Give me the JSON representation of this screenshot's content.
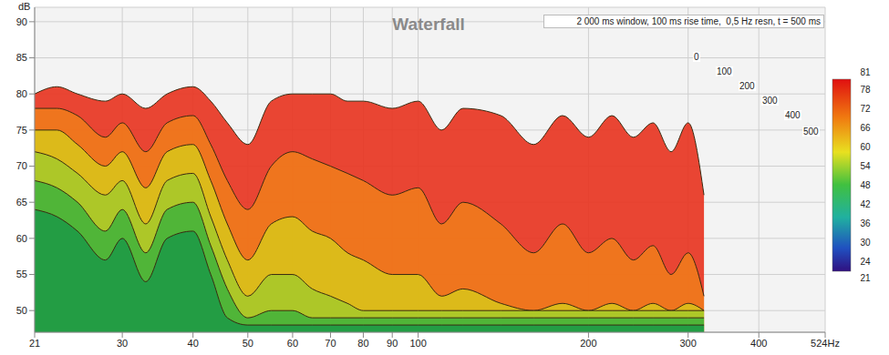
{
  "chart_data": {
    "type": "area",
    "title": "Waterfall",
    "subtitle": "2 000 ms window, 100 ms rise time,  0,5 Hz resn, t = 500 ms",
    "y_label": "dB",
    "log": "x",
    "grid": true,
    "xlim": [
      21,
      524
    ],
    "xticks": [
      21,
      30,
      40,
      50,
      60,
      70,
      80,
      90,
      100,
      200,
      300,
      400,
      {
        "value": 524,
        "label": "524Hz"
      }
    ],
    "ylim": [
      47,
      92
    ],
    "yticks": [
      50,
      55,
      60,
      65,
      70,
      75,
      80,
      85,
      90
    ],
    "x": [
      21,
      23,
      25,
      28,
      30,
      33,
      36,
      40,
      43,
      46,
      50,
      55,
      60,
      65,
      70,
      75,
      80,
      90,
      100,
      110,
      120,
      140,
      160,
      180,
      200,
      220,
      240,
      260,
      280,
      300,
      320
    ],
    "series": [
      {
        "name": "0",
        "color": "#e8321e",
        "values": [
          80,
          81,
          80,
          79,
          80,
          78,
          80,
          81,
          79,
          76,
          73,
          79,
          80,
          80,
          80,
          79,
          79,
          78,
          79,
          75,
          78,
          77,
          73,
          77,
          74,
          77,
          74,
          76,
          72,
          76,
          66
        ]
      },
      {
        "name": "100",
        "color": "#f07a1c",
        "values": [
          78,
          78,
          77,
          74,
          76,
          72,
          76,
          77,
          73,
          68,
          64,
          70,
          72,
          71,
          70,
          69,
          68,
          66,
          67,
          62,
          65,
          62,
          58,
          62,
          58,
          60,
          57,
          59,
          55,
          58,
          52
        ]
      },
      {
        "name": "200",
        "color": "#d9c21a",
        "values": [
          75,
          75,
          73,
          70,
          72,
          67,
          72,
          73,
          68,
          62,
          57,
          62,
          63,
          61,
          60,
          58,
          57,
          55,
          55,
          52,
          53,
          51,
          50,
          51,
          50,
          51,
          50,
          51,
          50,
          51,
          50
        ]
      },
      {
        "name": "300",
        "color": "#a7c92a",
        "values": [
          72,
          71,
          69,
          66,
          68,
          62,
          68,
          69,
          63,
          57,
          52,
          55,
          55,
          53,
          52,
          51,
          50,
          50,
          50,
          50,
          50,
          50,
          50,
          50,
          50,
          50,
          50,
          50,
          50,
          50,
          50
        ]
      },
      {
        "name": "400",
        "color": "#46b33a",
        "values": [
          68,
          67,
          65,
          61,
          64,
          58,
          64,
          65,
          59,
          53,
          49,
          50,
          50,
          49,
          49,
          49,
          49,
          49,
          49,
          49,
          49,
          49,
          49,
          49,
          49,
          49,
          49,
          49,
          49,
          49,
          49
        ]
      },
      {
        "name": "500",
        "color": "#1e9a46",
        "values": [
          64,
          63,
          61,
          57,
          60,
          54,
          60,
          61,
          55,
          49,
          48,
          48,
          48,
          48,
          48,
          48,
          48,
          48,
          48,
          48,
          48,
          48,
          48,
          48,
          48,
          48,
          48,
          48,
          48,
          48,
          48
        ]
      }
    ],
    "colorbar": {
      "range": [
        21,
        81
      ],
      "ticks": [
        24,
        30,
        36,
        42,
        48,
        54,
        60,
        66,
        72,
        78
      ]
    }
  }
}
